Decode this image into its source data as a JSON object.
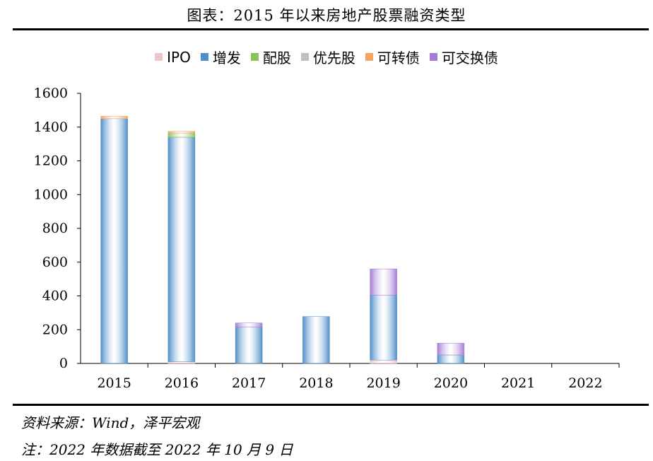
{
  "header": {
    "title": "图表：2015 年以来房地产股票融资类型"
  },
  "chart_data": {
    "type": "bar",
    "stacked": true,
    "categories": [
      "2015",
      "2016",
      "2017",
      "2018",
      "2019",
      "2020",
      "2021",
      "2022"
    ],
    "series": [
      {
        "name": "IPO",
        "color": "#f2c4c4",
        "values": [
          0,
          10,
          0,
          0,
          20,
          0,
          0,
          0
        ]
      },
      {
        "name": "增发",
        "color": "#4f8fc8",
        "values": [
          1450,
          1330,
          215,
          278,
          385,
          50,
          0,
          0
        ]
      },
      {
        "name": "配股",
        "color": "#8dbf5a",
        "values": [
          0,
          25,
          0,
          0,
          0,
          0,
          0,
          0
        ]
      },
      {
        "name": "优先股",
        "color": "#bfbfbf",
        "values": [
          0,
          0,
          0,
          0,
          0,
          0,
          0,
          0
        ]
      },
      {
        "name": "可转债",
        "color": "#f4a460",
        "values": [
          15,
          10,
          0,
          0,
          0,
          0,
          0,
          0
        ]
      },
      {
        "name": "可交换债",
        "color": "#a57cd6",
        "values": [
          0,
          0,
          25,
          0,
          155,
          70,
          0,
          0
        ]
      }
    ],
    "y_ticks": [
      "0",
      "200",
      "400",
      "600",
      "800",
      "1000",
      "1200",
      "1400",
      "1600"
    ],
    "ylim": [
      0,
      1600
    ],
    "legend_position": "top-center",
    "grid": false
  },
  "footer": {
    "source": "资料来源：Wind，泽平宏观",
    "note": "注：2022 年数据截至 2022 年 10 月 9 日"
  }
}
